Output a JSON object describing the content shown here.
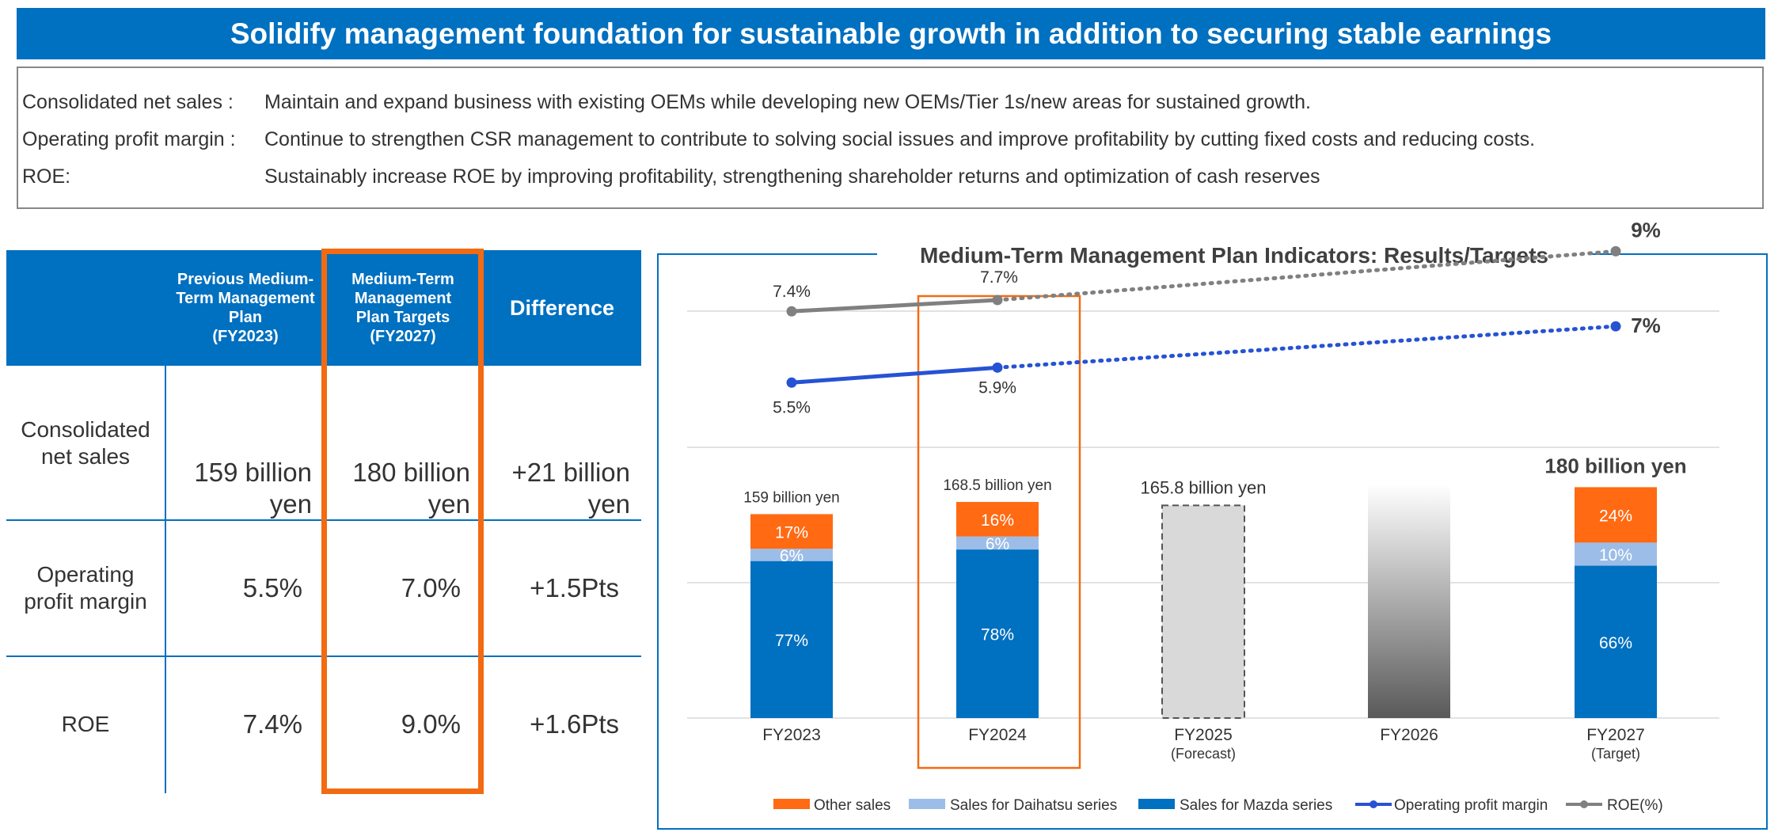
{
  "banner": {
    "title": "Solidify management foundation for sustainable growth in addition to securing stable earnings"
  },
  "summary": [
    {
      "label": "Consolidated net sales :",
      "text": "Maintain and expand business with existing OEMs while developing new OEMs/Tier 1s/new areas for sustained growth."
    },
    {
      "label": "Operating profit margin :",
      "text": "Continue to strengthen CSR management to contribute to solving social issues and improve profitability by cutting fixed costs and reducing costs."
    },
    {
      "label": "ROE:",
      "text": "Sustainably increase ROE by improving profitability, strengthening shareholder returns and optimization of cash reserves"
    }
  ],
  "table": {
    "headers": {
      "previous": [
        "Previous Medium-",
        "Term Management",
        "Plan",
        "(FY2023)"
      ],
      "target": [
        "Medium-Term",
        "Management",
        "Plan Targets",
        "(FY2027)"
      ],
      "difference": "Difference"
    },
    "rows": [
      {
        "label": [
          "Consolidated",
          "net sales"
        ],
        "previous": [
          "159 billion",
          "yen"
        ],
        "target": [
          "180 billion",
          "yen"
        ],
        "difference": [
          "+21 billion",
          "yen"
        ]
      },
      {
        "label": [
          "Operating",
          "profit margin"
        ],
        "previous": [
          "5.5%"
        ],
        "target": [
          "7.0%"
        ],
        "difference": [
          "+1.5Pts"
        ]
      },
      {
        "label": [
          "ROE"
        ],
        "previous": [
          "7.4%"
        ],
        "target": [
          "9.0%"
        ],
        "difference": [
          "+1.6Pts"
        ]
      }
    ]
  },
  "colors": {
    "brand_blue": "#0070c0",
    "highlight_orange": "#f26b12",
    "other_sales": "#ff6a13",
    "daihatsu": "#9cbde8",
    "mazda": "#0070c0",
    "op_margin_line": "#2652d4",
    "roe_line": "#808080",
    "forecast_bar": "#d9d9d9"
  },
  "chart_data": {
    "type": "bar",
    "title": "Medium-Term Management Plan Indicators: Results/Targets",
    "categories": [
      "FY2023",
      "FY2024",
      "FY2025",
      "FY2026",
      "FY2027"
    ],
    "category_sublabels": [
      "",
      "",
      "(Forecast)",
      "",
      "(Target)"
    ],
    "stacked": true,
    "totals": [
      159,
      168.5,
      165.8,
      null,
      180
    ],
    "total_labels": [
      "159 billion yen",
      "168.5 billion yen",
      "165.8 billion yen",
      "",
      "180 billion yen"
    ],
    "series": [
      {
        "name": "Other sales",
        "share_percent": [
          17,
          16,
          null,
          null,
          24
        ]
      },
      {
        "name": "Sales for Daihatsu series",
        "share_percent": [
          6,
          6,
          null,
          null,
          10
        ]
      },
      {
        "name": "Sales for Mazda series",
        "share_percent": [
          77,
          78,
          null,
          null,
          66
        ]
      }
    ],
    "line_series": [
      {
        "name": "Operating profit margin",
        "unit": "%",
        "points": [
          {
            "x": "FY2023",
            "y": 5.5
          },
          {
            "x": "FY2024",
            "y": 5.9
          },
          {
            "x": "FY2027",
            "y": 7
          }
        ],
        "labels": [
          "5.5%",
          "5.9%",
          "7%"
        ],
        "projection_style": "dotted"
      },
      {
        "name": "ROE(%)",
        "unit": "%",
        "points": [
          {
            "x": "FY2023",
            "y": 7.4
          },
          {
            "x": "FY2024",
            "y": 7.7
          },
          {
            "x": "FY2027",
            "y": 9
          }
        ],
        "labels": [
          "7.4%",
          "7.7%",
          "9%"
        ],
        "projection_style": "dotted"
      }
    ],
    "bar_notes": {
      "FY2025": "forecast (dashed outline, no breakdown)",
      "FY2026": "gradient placeholder"
    },
    "highlighted_category": "FY2024",
    "grid": true,
    "legend_position": "bottom"
  }
}
